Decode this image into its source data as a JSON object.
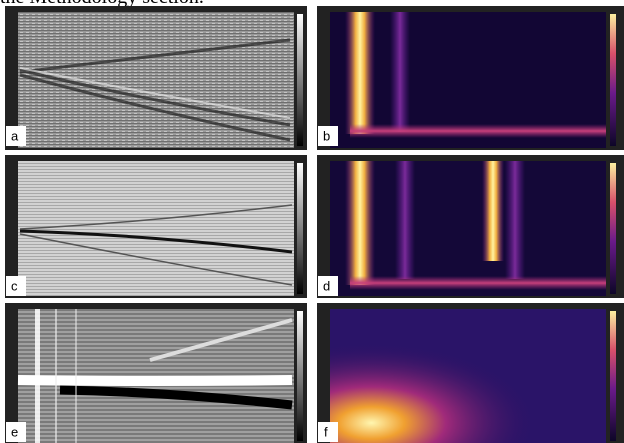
{
  "caption_fragment": "the Methodology section.",
  "panels": [
    {
      "label": "a"
    },
    {
      "label": "b"
    },
    {
      "label": "c"
    },
    {
      "label": "d"
    },
    {
      "label": "e"
    },
    {
      "label": "f"
    }
  ]
}
